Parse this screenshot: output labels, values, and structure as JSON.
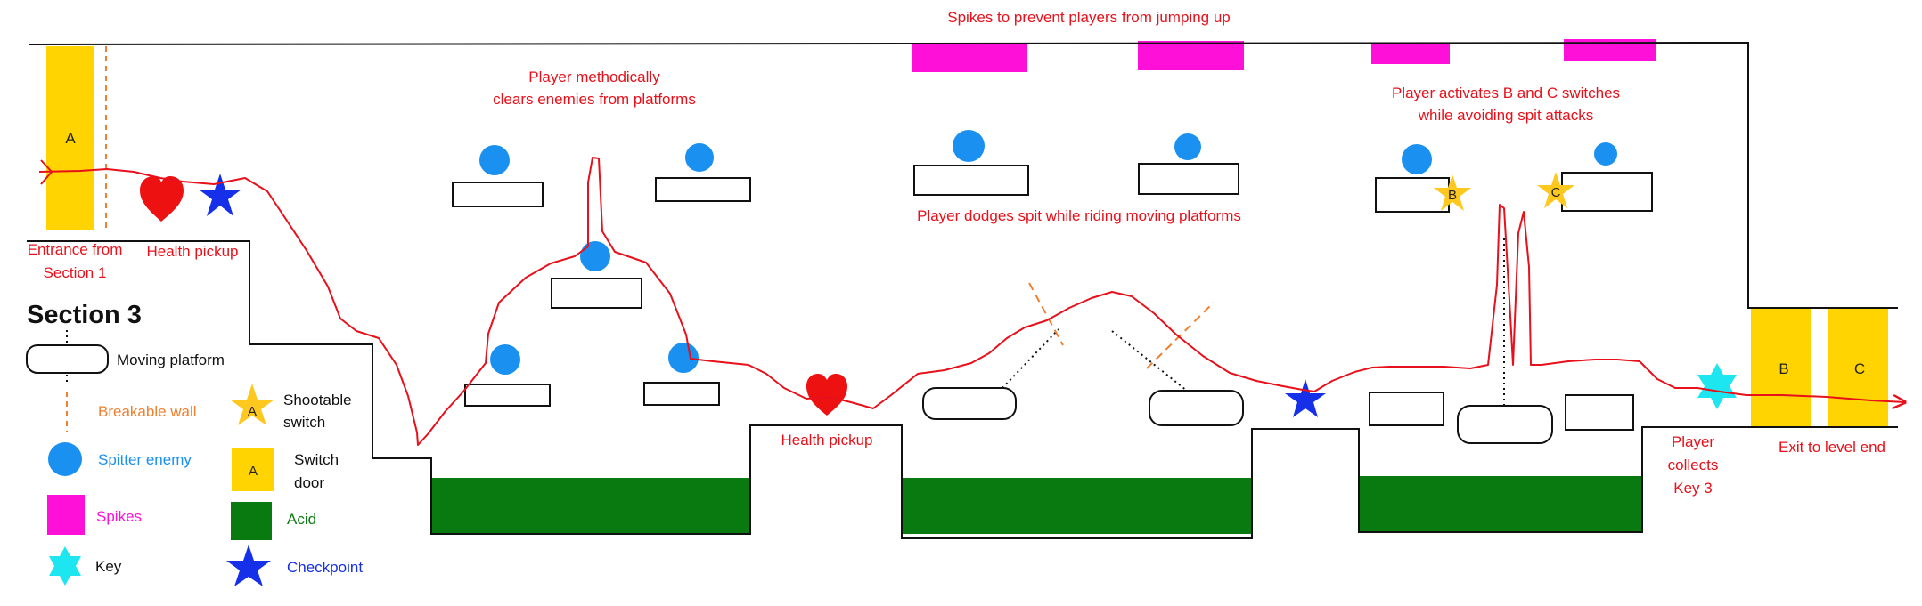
{
  "annotations": {
    "spikes_note": "Spikes to prevent players from jumping up",
    "clears_note_line1": "Player methodically",
    "clears_note_line2": "clears enemies from platforms",
    "switches_note_line1": "Player activates B and C switches",
    "switches_note_line2": "while avoiding spit attacks",
    "dodge_note": "Player dodges spit while riding moving platforms",
    "entrance_line1": "Entrance from",
    "entrance_line2": "Section 1",
    "health_pickup_top": "Health pickup",
    "health_pickup_bottom": "Health pickup",
    "collects_line1": "Player",
    "collects_line2": "collects",
    "collects_line3": "Key 3",
    "exit_note": "Exit to level end"
  },
  "doors": {
    "a": "A",
    "b": "B",
    "c": "C"
  },
  "switches": {
    "b": "B",
    "c": "C"
  },
  "legend": {
    "title": "Section 3",
    "moving_platform": "Moving platform",
    "breakable_wall": "Breakable wall",
    "spitter_enemy": "Spitter enemy",
    "spikes": "Spikes",
    "key": "Key",
    "shootable_switch_line1": "Shootable",
    "shootable_switch_line2": "switch",
    "shootable_switch_glyph": "A",
    "switch_door_line1": "Switch",
    "switch_door_line2": "door",
    "switch_door_glyph": "A",
    "acid": "Acid",
    "checkpoint": "Checkpoint"
  },
  "colors": {
    "annotation": "#e8101a",
    "path": "#e8101a",
    "door": "#ffd400",
    "spikes": "#ff10d8",
    "acid": "#087a10",
    "enemy": "#1a90f0",
    "key": "#1ee6f0",
    "checkpoint": "#1530e8",
    "switch": "#ffc81e",
    "breakable_wall": "#f08030"
  }
}
